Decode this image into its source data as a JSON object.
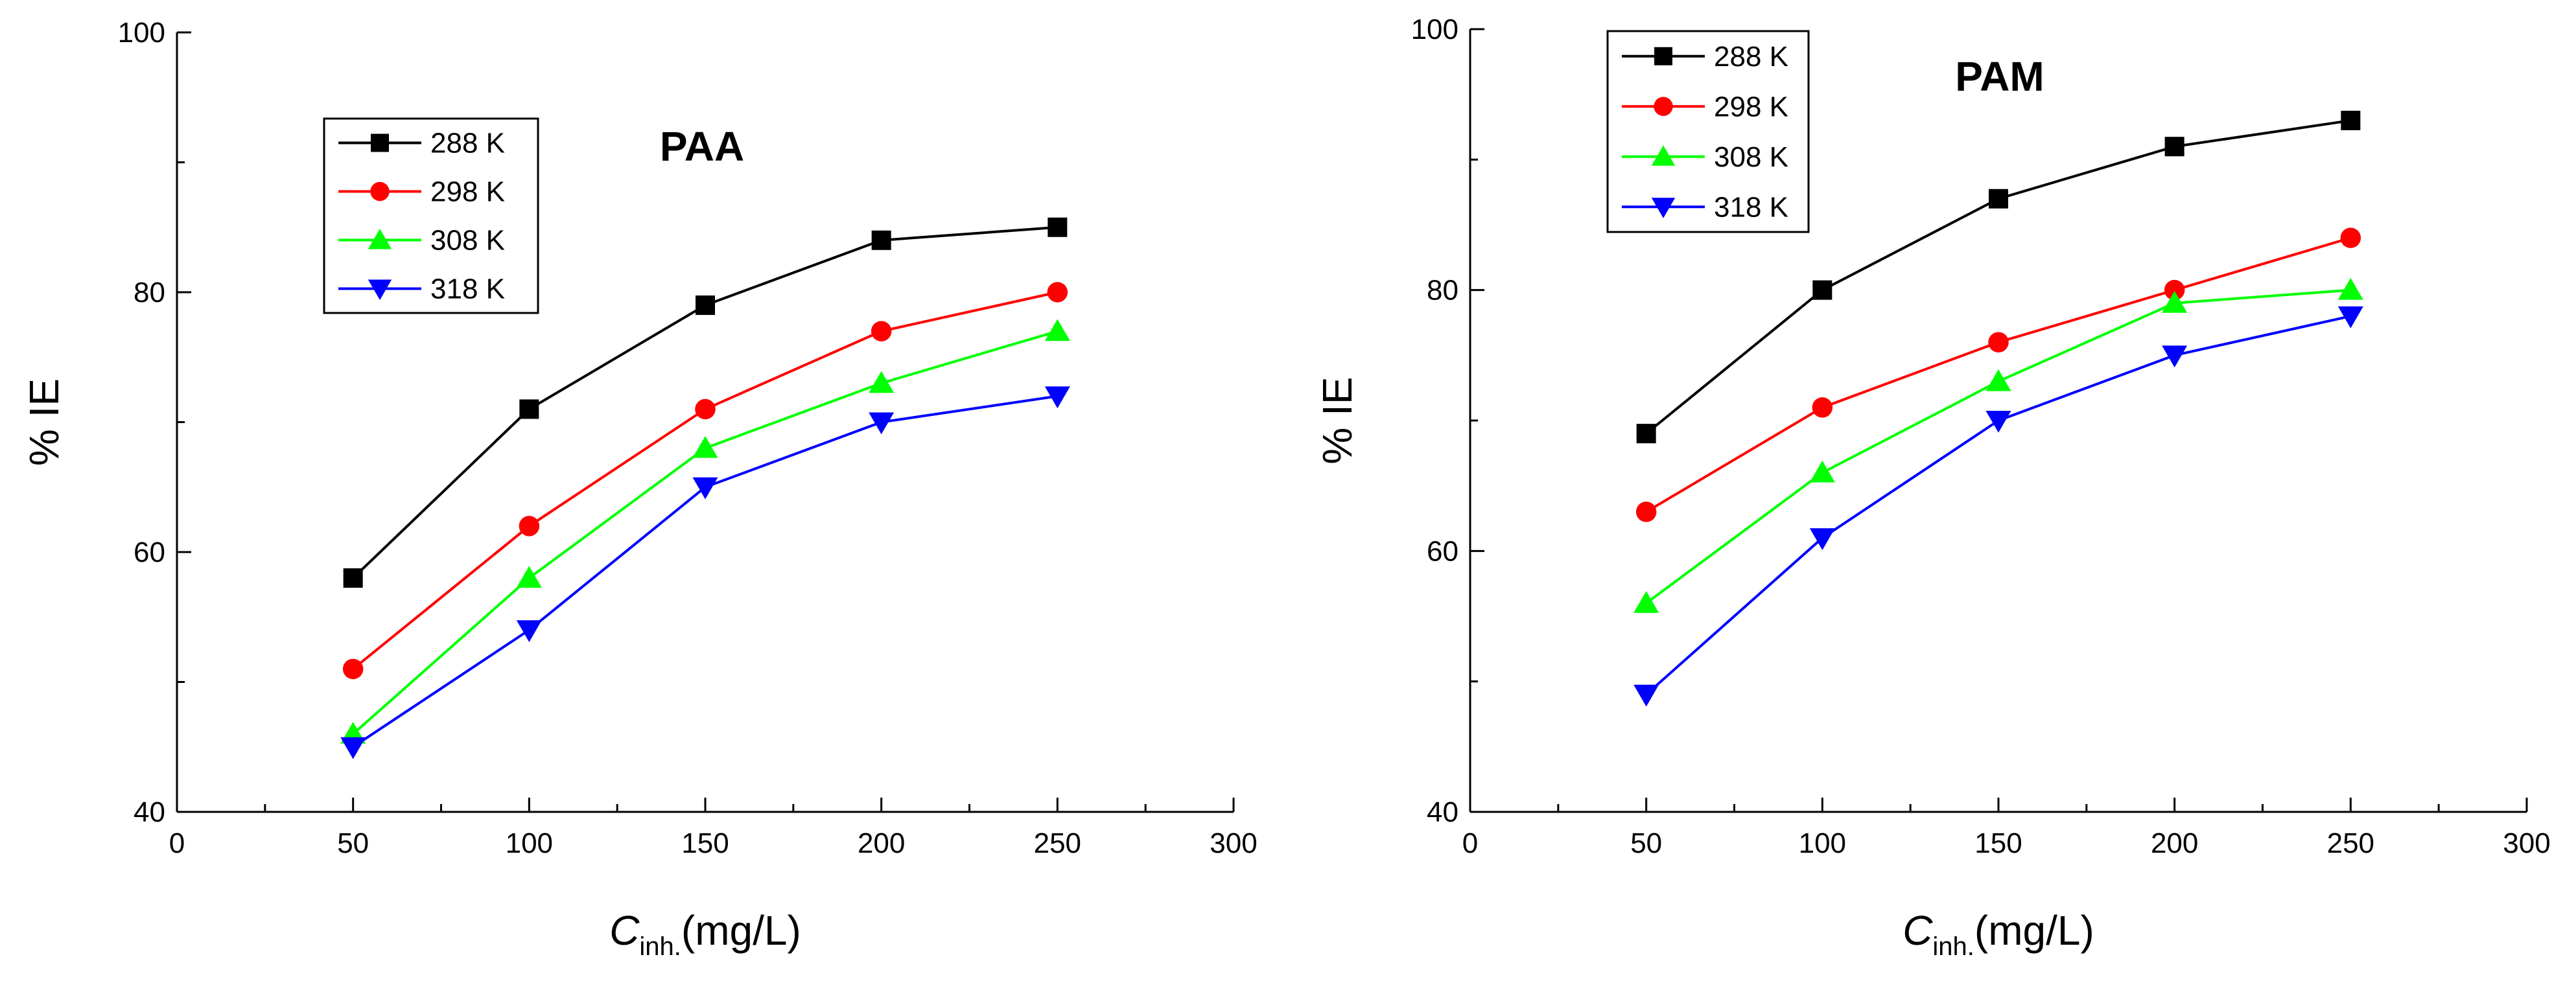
{
  "chart_data": [
    {
      "type": "line",
      "title": "PAA",
      "xlabel": "C",
      "xlabel_subscript": "inh.",
      "xlabel_unit": "(mg/L)",
      "ylabel": "% IE",
      "xlim": [
        0,
        300
      ],
      "ylim": [
        40,
        100
      ],
      "xticks": [
        0,
        50,
        100,
        150,
        200,
        250,
        300
      ],
      "yticks": [
        40,
        60,
        80,
        100
      ],
      "grid": false,
      "legend_position": "top-left",
      "x": [
        50,
        100,
        150,
        200,
        250
      ],
      "series": [
        {
          "name": "288 K",
          "color": "#000000",
          "marker": "square",
          "values": [
            58,
            71,
            79,
            84,
            85
          ]
        },
        {
          "name": "298 K",
          "color": "#ff0000",
          "marker": "circle",
          "values": [
            51,
            62,
            71,
            77,
            80
          ]
        },
        {
          "name": "308 K",
          "color": "#00ff00",
          "marker": "triangle-up",
          "values": [
            46,
            58,
            68,
            73,
            77
          ]
        },
        {
          "name": "318 K",
          "color": "#0000ff",
          "marker": "triangle-down",
          "values": [
            45,
            54,
            65,
            70,
            72
          ]
        }
      ]
    },
    {
      "type": "line",
      "title": "PAM",
      "xlabel": "C",
      "xlabel_subscript": "inh.",
      "xlabel_unit": "(mg/L)",
      "ylabel": "% IE",
      "xlim": [
        0,
        300
      ],
      "ylim": [
        40,
        100
      ],
      "xticks": [
        0,
        50,
        100,
        150,
        200,
        250,
        300
      ],
      "yticks": [
        40,
        60,
        80,
        100
      ],
      "grid": false,
      "legend_position": "top-left",
      "x": [
        50,
        100,
        150,
        200,
        250
      ],
      "series": [
        {
          "name": "288 K",
          "color": "#000000",
          "marker": "square",
          "values": [
            69,
            80,
            87,
            91,
            93
          ]
        },
        {
          "name": "298 K",
          "color": "#ff0000",
          "marker": "circle",
          "values": [
            63,
            71,
            76,
            80,
            84
          ]
        },
        {
          "name": "308 K",
          "color": "#00ff00",
          "marker": "triangle-up",
          "values": [
            56,
            66,
            73,
            79,
            80
          ]
        },
        {
          "name": "318 K",
          "color": "#0000ff",
          "marker": "triangle-down",
          "values": [
            49,
            61,
            70,
            75,
            78
          ]
        }
      ]
    }
  ]
}
